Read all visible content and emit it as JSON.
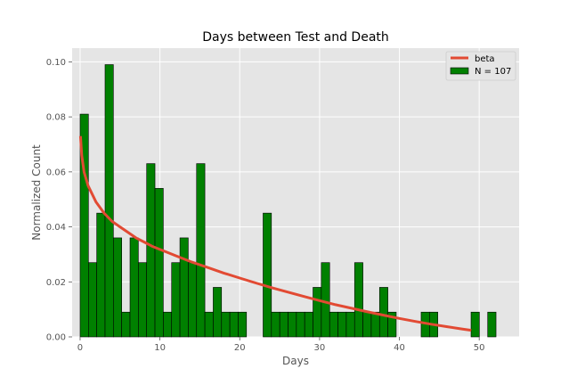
{
  "chart_data": {
    "type": "bar",
    "title": "Days between Test and Death",
    "xlabel": "Days",
    "ylabel": "Normalized Count",
    "xlim": [
      -1,
      55
    ],
    "ylim": [
      0,
      0.105
    ],
    "xticks": [
      0,
      10,
      20,
      30,
      40,
      50
    ],
    "yticks": [
      0.0,
      0.02,
      0.04,
      0.06,
      0.08,
      0.1
    ],
    "xtick_labels": [
      "0",
      "10",
      "20",
      "30",
      "40",
      "50"
    ],
    "ytick_labels": [
      "0.00",
      "0.02",
      "0.04",
      "0.06",
      "0.08",
      "0.10"
    ],
    "grid": true,
    "legend_position": "top-right",
    "colors": {
      "background": "#e5e5e5",
      "grid": "#ffffff",
      "bars": "#008000",
      "bar_edge": "#000000",
      "line": "#e24a33"
    },
    "histogram": {
      "name": "N = 107",
      "bin_width": 1.0421,
      "bin_start": 0,
      "values": [
        0.081,
        0.027,
        0.045,
        0.099,
        0.036,
        0.009,
        0.036,
        0.027,
        0.063,
        0.054,
        0.009,
        0.027,
        0.036,
        0.027,
        0.063,
        0.009,
        0.018,
        0.009,
        0.009,
        0.009,
        0,
        0,
        0.045,
        0.009,
        0.009,
        0.009,
        0.009,
        0.009,
        0.018,
        0.027,
        0.009,
        0.009,
        0.009,
        0.027,
        0.009,
        0.009,
        0.018,
        0.009,
        0,
        0,
        0,
        0.009,
        0.009,
        0,
        0,
        0,
        0,
        0.009,
        0,
        0.009
      ]
    },
    "line": {
      "name": "beta",
      "x": [
        0.05,
        0.2,
        0.5,
        1,
        2,
        3,
        4,
        5,
        6,
        7,
        8,
        9,
        10,
        12,
        14,
        16,
        18,
        20,
        22,
        24,
        26,
        28,
        30,
        32,
        34,
        36,
        38,
        40,
        42,
        44,
        46,
        48,
        49
      ],
      "y": [
        0.073,
        0.066,
        0.06,
        0.055,
        0.049,
        0.045,
        0.042,
        0.04,
        0.038,
        0.036,
        0.0345,
        0.033,
        0.0318,
        0.0295,
        0.0272,
        0.0252,
        0.0232,
        0.0214,
        0.0196,
        0.0179,
        0.0163,
        0.0147,
        0.0132,
        0.0117,
        0.0104,
        0.0091,
        0.0079,
        0.0067,
        0.0056,
        0.0046,
        0.0037,
        0.0028,
        0.0024
      ]
    }
  }
}
